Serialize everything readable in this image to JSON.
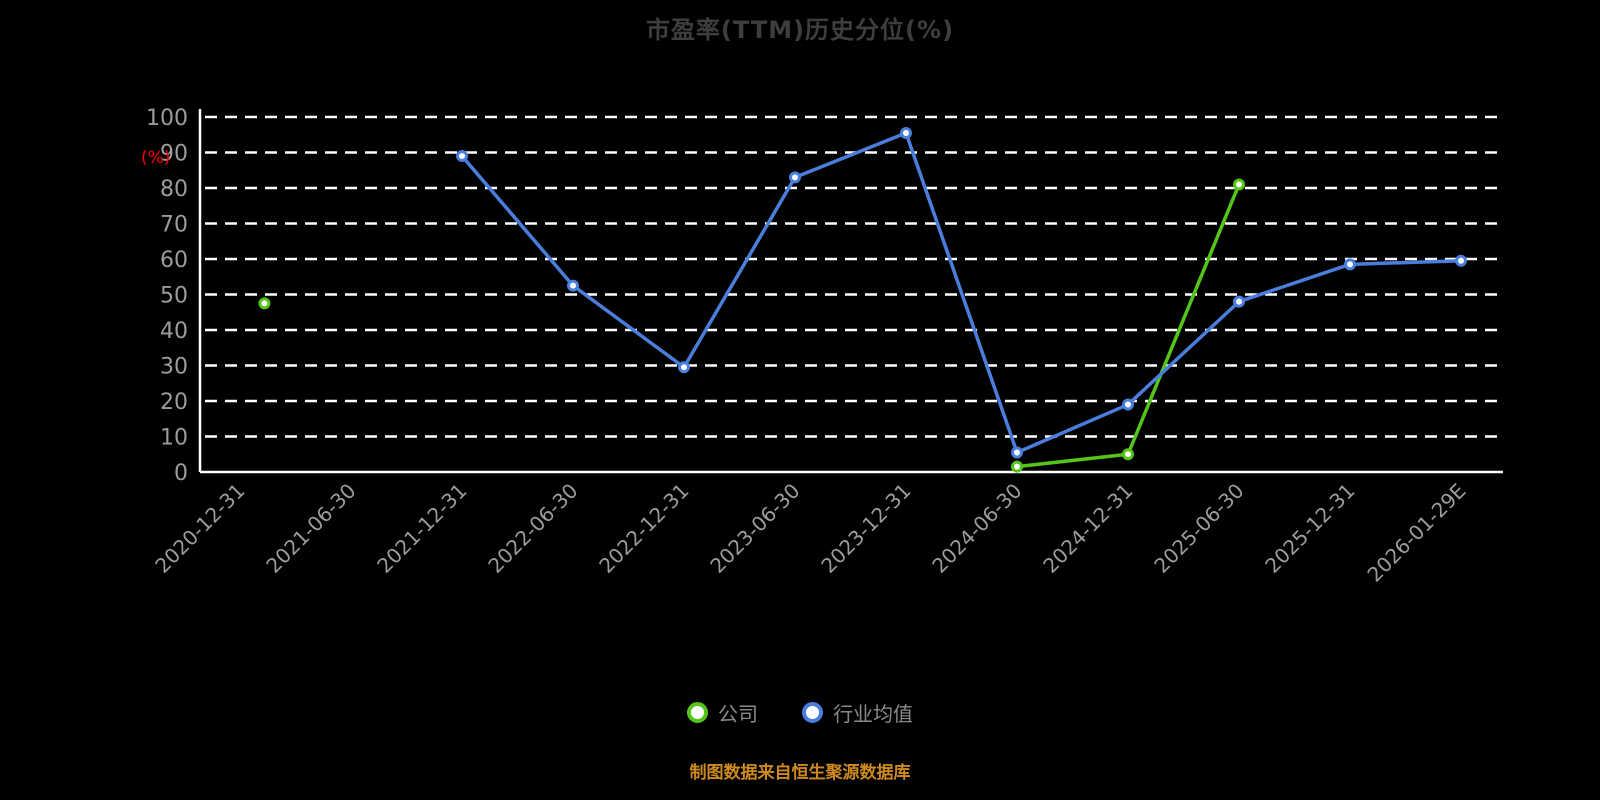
{
  "header": {
    "title": "市盈率(TTM)历史分位(%)"
  },
  "footer": {
    "source_note": "制图数据来自恒生聚源数据库",
    "color": "#ce8a1e"
  },
  "legend": {
    "items": [
      {
        "label": "公司",
        "color": "#55c519"
      },
      {
        "label": "行业均值",
        "color": "#4a7edc"
      }
    ]
  },
  "colors": {
    "background": "#000000",
    "grid": "#ffffff",
    "axis": "#ffffff",
    "tick_label": "#9c9c9c",
    "y_unit_label": "#ff0000",
    "title": "#3e3e3e"
  },
  "chart_data": {
    "type": "line",
    "title": "市盈率(TTM)历史分位(%)",
    "xlabel": "",
    "ylabel": "(%)",
    "ylim": [
      0,
      100
    ],
    "yticks": [
      0,
      10,
      20,
      30,
      40,
      50,
      60,
      70,
      80,
      90,
      100
    ],
    "grid": "horizontal-dashed",
    "legend_position": "bottom",
    "x_unit": "category-index (fractional allowed)",
    "categories": [
      "2020-12-31",
      "2021-06-30",
      "2021-12-31",
      "2022-06-30",
      "2022-12-31",
      "2023-06-30",
      "2023-12-31",
      "2024-06-30",
      "2024-12-31",
      "2025-06-30",
      "2025-12-31",
      "2026-01-29E"
    ],
    "series": [
      {
        "name": "公司",
        "color": "#55c519",
        "segments": [
          [
            [
              0.22,
              47.5
            ]
          ],
          [
            [
              7,
              1.5
            ],
            [
              8,
              5
            ],
            [
              9,
              81
            ]
          ]
        ]
      },
      {
        "name": "行业均值",
        "color": "#4a7edc",
        "segments": [
          [
            [
              2,
              89
            ],
            [
              3,
              52.5
            ],
            [
              4,
              29.5
            ],
            [
              5,
              83
            ],
            [
              6,
              95.5
            ],
            [
              7,
              5.5
            ],
            [
              8,
              19
            ],
            [
              9,
              48
            ],
            [
              10,
              58.5
            ],
            [
              11,
              59.5
            ]
          ]
        ]
      }
    ]
  }
}
